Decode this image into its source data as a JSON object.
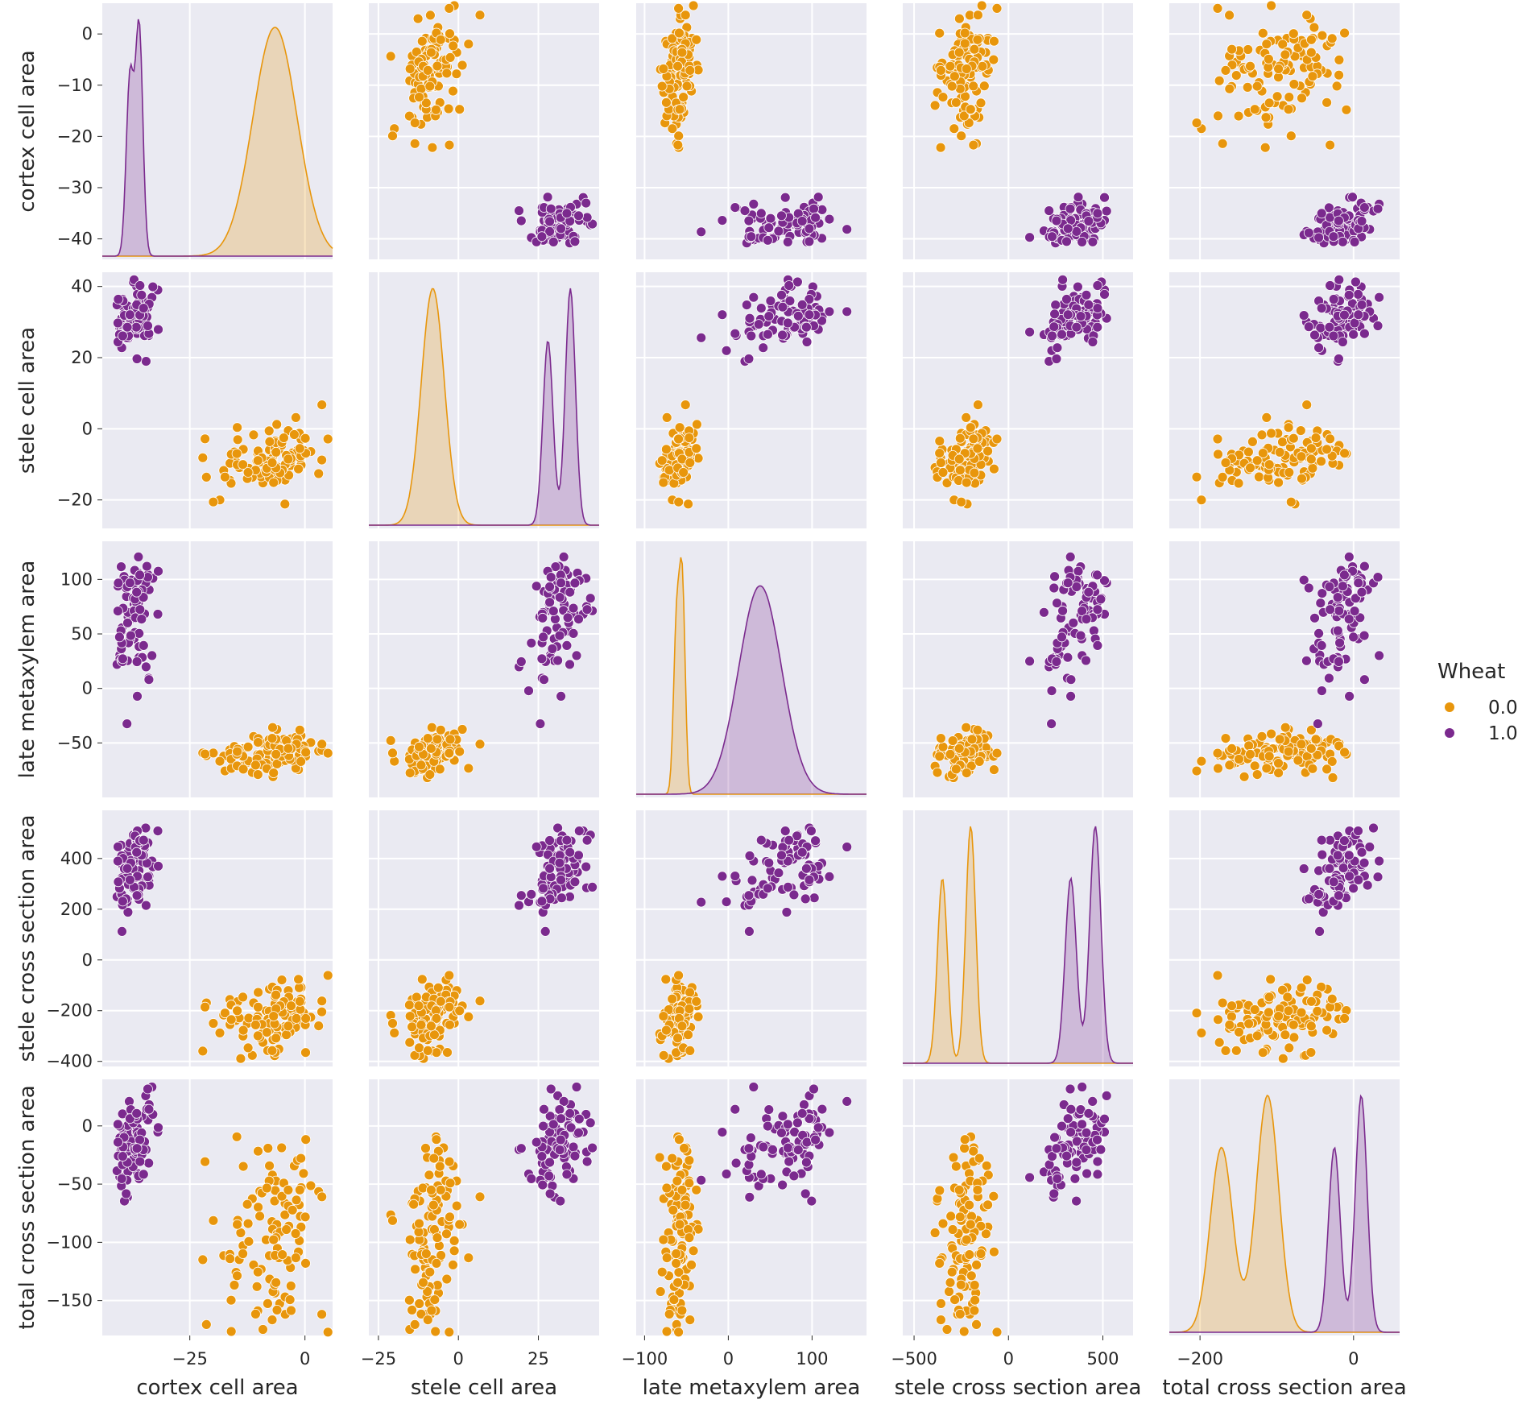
{
  "chart_data": {
    "type": "scatter",
    "kind": "pairplot",
    "variables": [
      "cortex cell area",
      "stele cell area",
      "late metaxylem area",
      "stele cross section area",
      "total cross section area"
    ],
    "xlims": [
      [
        -44,
        6
      ],
      [
        -28,
        44
      ],
      [
        -110,
        165
      ],
      [
        -560,
        660
      ],
      [
        -240,
        60
      ]
    ],
    "ylims": [
      [
        -44,
        6
      ],
      [
        -28,
        44
      ],
      [
        -100,
        135
      ],
      [
        -420,
        590
      ],
      [
        -180,
        40
      ]
    ],
    "xticks": [
      [
        -25,
        0
      ],
      [
        -25,
        0,
        25
      ],
      [
        -100,
        0,
        100
      ],
      [
        -500,
        0,
        500
      ],
      [
        -200,
        0
      ]
    ],
    "yticks": [
      [
        0,
        -10,
        -20,
        -30,
        -40
      ],
      [
        40,
        20,
        0,
        -20
      ],
      [
        100,
        50,
        0,
        -50
      ],
      [
        400,
        200,
        0,
        -200,
        -400
      ],
      [
        0,
        -50,
        -100,
        -150
      ]
    ],
    "hue": {
      "title": "Wheat",
      "levels": [
        "0.0",
        "1.0"
      ],
      "colors": [
        "#e8960c",
        "#7b2a8e"
      ]
    },
    "groups": [
      {
        "label": "0.0",
        "color": "#e8960c",
        "means": [
          -7,
          -8,
          -58,
          -230,
          -100
        ],
        "sds": [
          6,
          4.5,
          10,
          75,
          42
        ],
        "n": 110,
        "kde_peaks": [
          [
            -6.5
          ],
          [
            -8
          ],
          [
            -62,
            -55
          ],
          [
            -350,
            -200
          ],
          [
            -172,
            -112
          ]
        ]
      },
      {
        "label": "1.0",
        "color": "#7b2a8e",
        "means": [
          -37,
          31,
          58,
          360,
          -18
        ],
        "sds": [
          2.3,
          4.5,
          32,
          85,
          22
        ],
        "n": 90,
        "kde_peaks": [
          [
            -38,
            -36
          ],
          [
            28,
            35
          ],
          [
            38
          ],
          [
            330,
            460
          ],
          [
            -25,
            10
          ]
        ]
      }
    ]
  },
  "legend": {
    "title": "Wheat",
    "items": [
      "0.0",
      "1.0"
    ]
  }
}
